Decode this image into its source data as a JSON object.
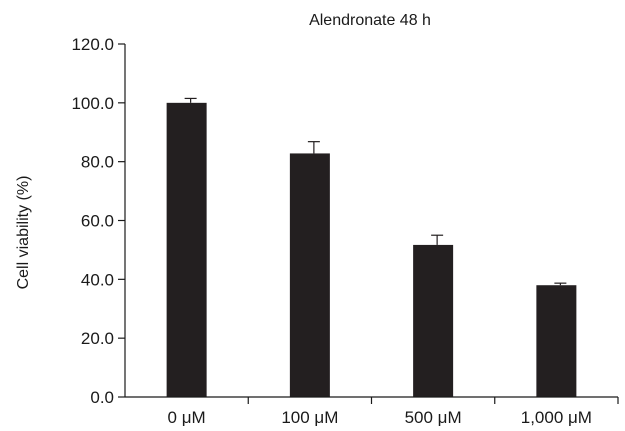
{
  "chart_data": {
    "type": "bar",
    "title": "Alendronate 48 h",
    "xlabel": "",
    "ylabel": "Cell viability (%)",
    "categories": [
      "0 μM",
      "100 μM",
      "500 μM",
      "1,000 μM"
    ],
    "values": [
      100.0,
      82.8,
      51.7,
      38.0
    ],
    "error_plus": [
      1.5,
      4.0,
      3.3,
      0.7
    ],
    "ylim": [
      0,
      120
    ],
    "yticks": [
      "0.0",
      "20.0",
      "40.0",
      "60.0",
      "80.0",
      "100.0",
      "120.0"
    ],
    "ytick_values": [
      0,
      20,
      40,
      60,
      80,
      100,
      120
    ],
    "grid": false,
    "legend": "none",
    "bar_color": "#231f20"
  }
}
